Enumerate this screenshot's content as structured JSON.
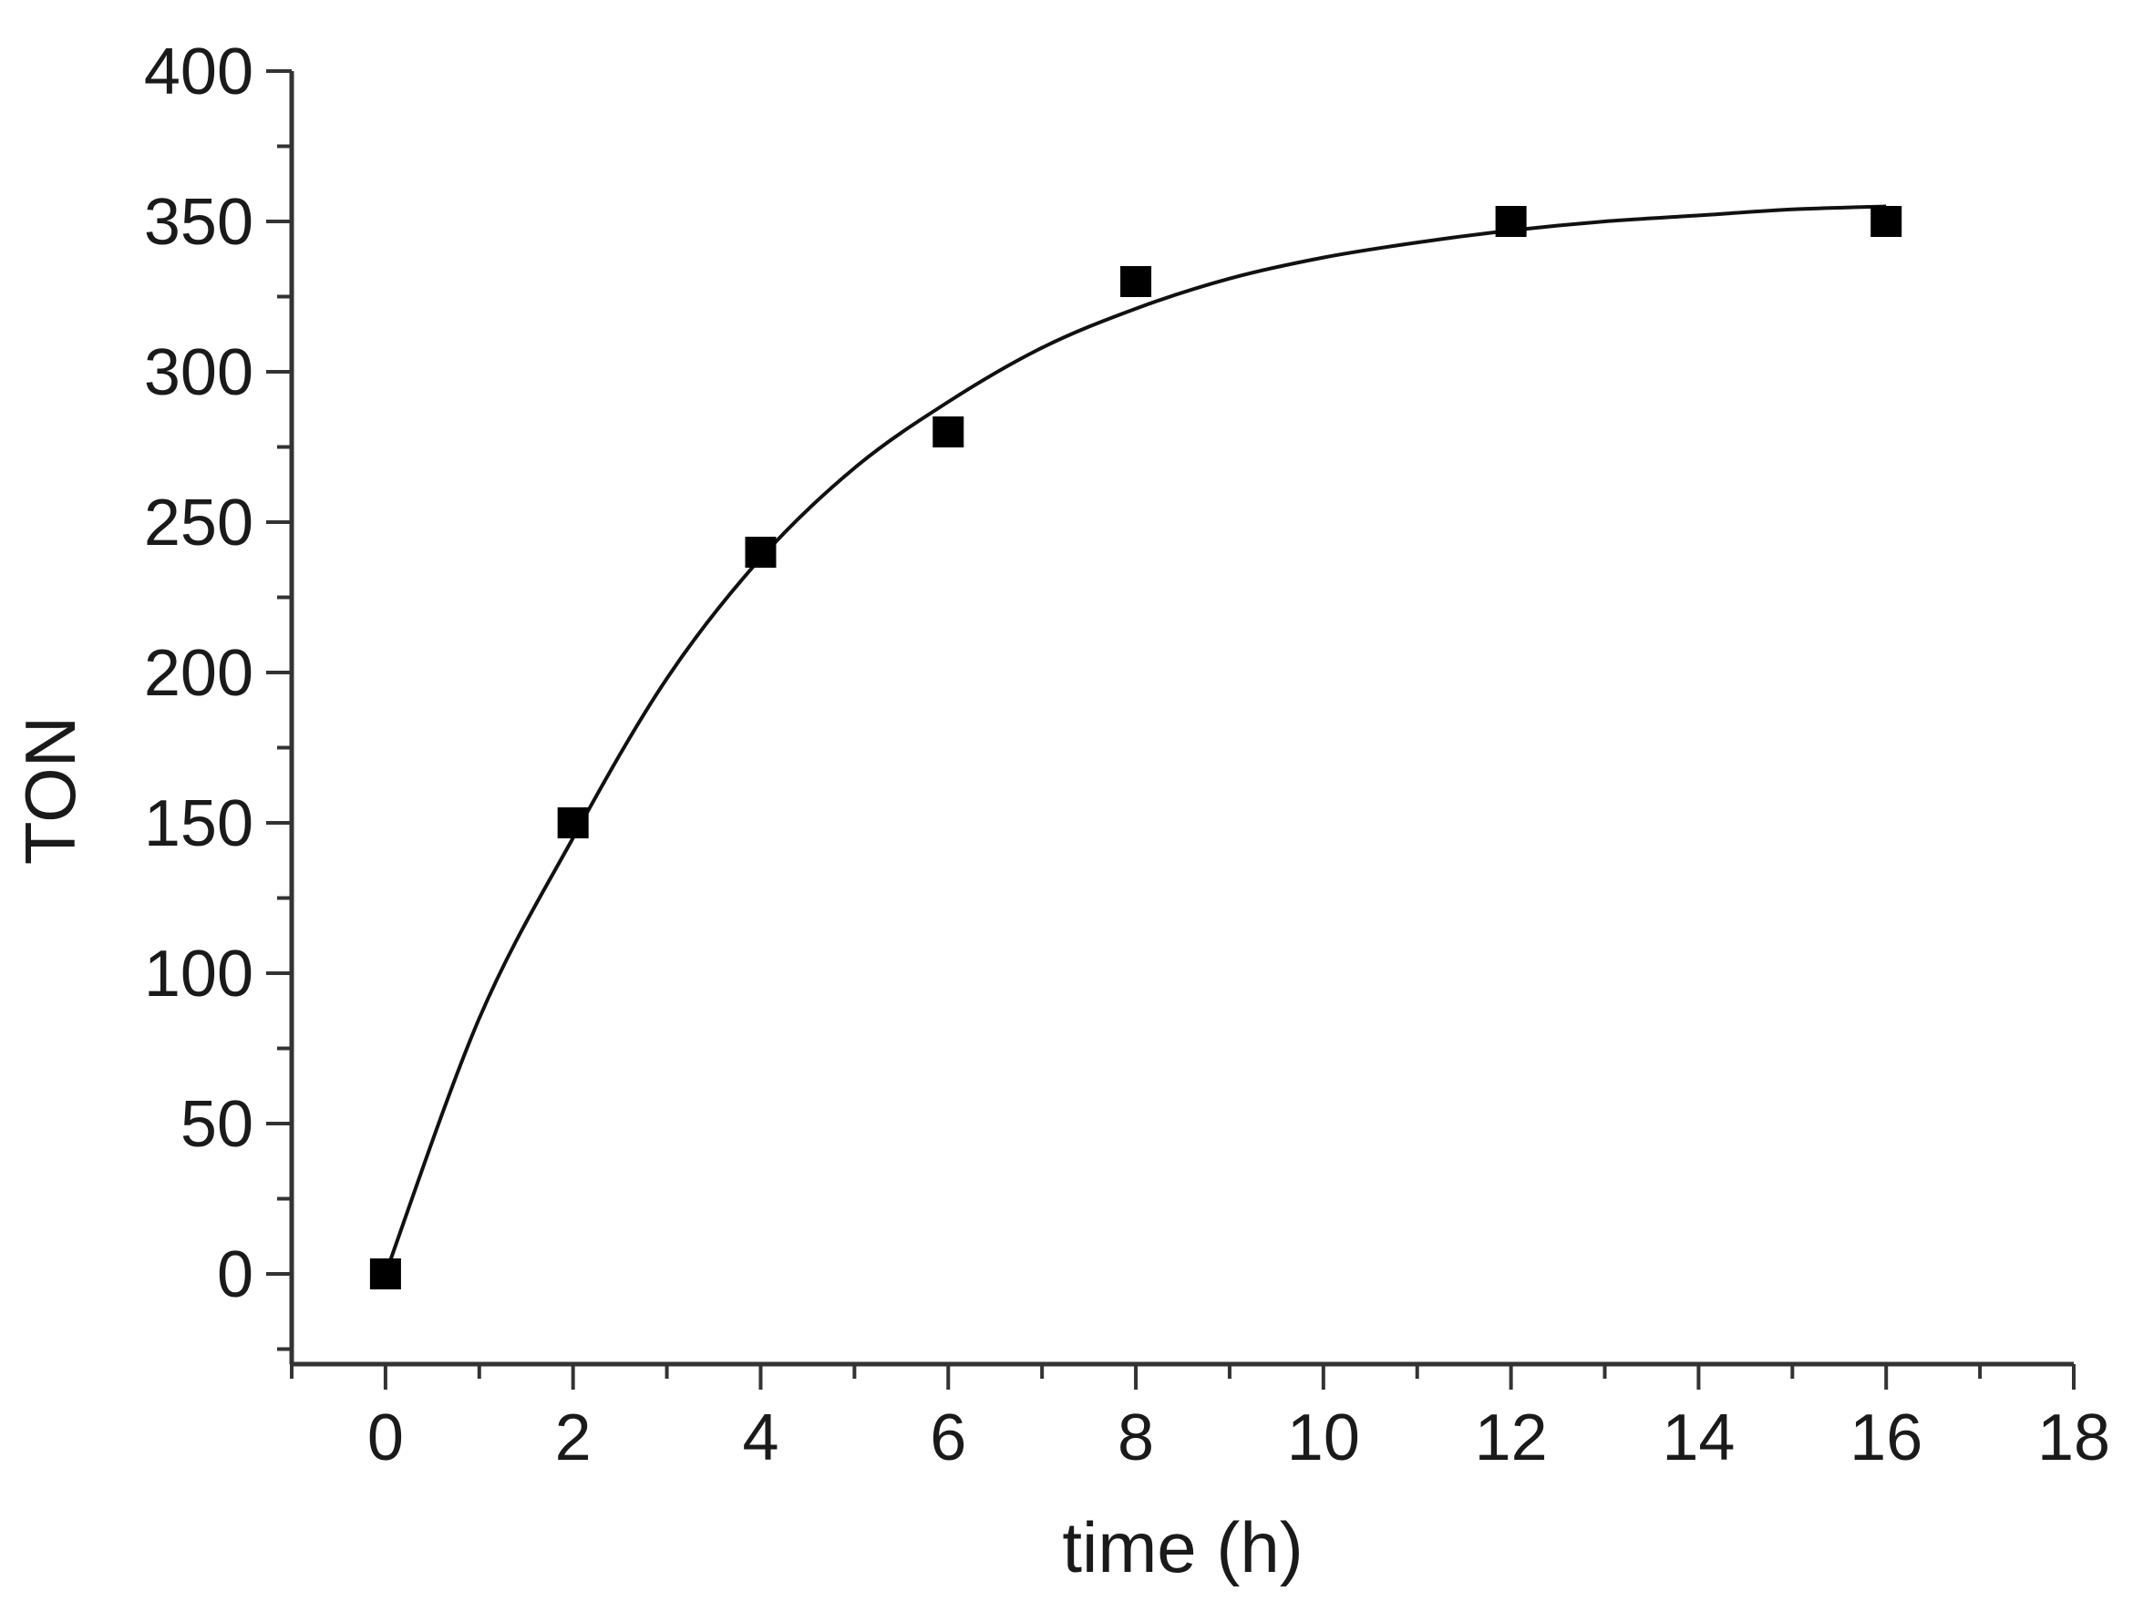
{
  "chart_data": {
    "type": "scatter",
    "title": "",
    "xlabel": "time (h)",
    "ylabel": "TON",
    "xlim": [
      -1,
      18
    ],
    "ylim": [
      -30,
      400
    ],
    "x_ticks": [
      0,
      2,
      4,
      6,
      8,
      10,
      12,
      14,
      16,
      18
    ],
    "x_tick_labels": [
      "0",
      "2",
      "4",
      "6",
      "8",
      "10",
      "12",
      "14",
      "16",
      "18"
    ],
    "y_ticks": [
      0,
      50,
      100,
      150,
      200,
      250,
      300,
      350,
      400
    ],
    "y_tick_labels": [
      "0",
      "50",
      "100",
      "150",
      "200",
      "250",
      "300",
      "350",
      "400"
    ],
    "grid": false,
    "series": [
      {
        "kind": "scatter",
        "marker": "square",
        "color": "#000000",
        "x": [
          0,
          2,
          4,
          6,
          8,
          12,
          16
        ],
        "y": [
          0,
          150,
          240,
          280,
          330,
          350,
          350
        ]
      },
      {
        "kind": "line",
        "color": "#111111",
        "x": [
          0,
          1,
          2,
          3,
          4,
          5,
          6,
          7,
          8,
          9,
          10,
          11,
          12,
          13,
          14,
          15,
          16
        ],
        "y": [
          0,
          85,
          145,
          198,
          238,
          268,
          290,
          308,
          321,
          331,
          338,
          343,
          347,
          350,
          352,
          354,
          355
        ]
      }
    ]
  }
}
